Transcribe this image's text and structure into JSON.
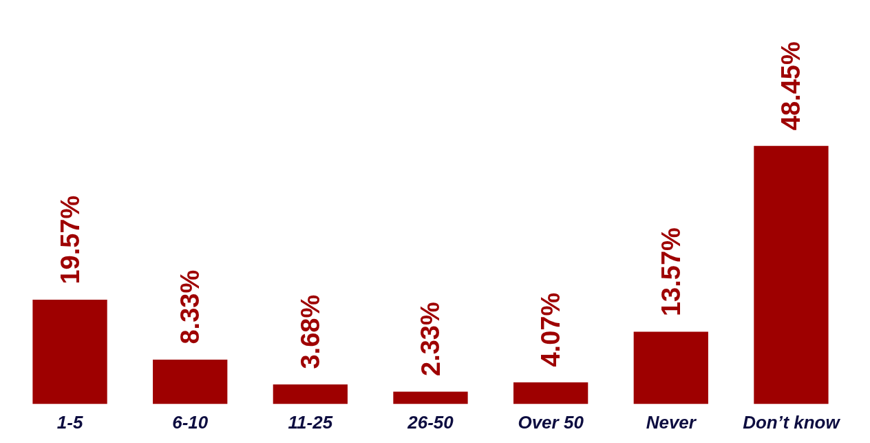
{
  "chart_data": {
    "type": "bar",
    "categories": [
      "1-5",
      "6-10",
      "11-25",
      "26-50",
      "Over 50",
      "Never",
      "Don’t know"
    ],
    "values": [
      19.57,
      8.33,
      3.68,
      2.33,
      4.07,
      13.57,
      48.45
    ],
    "color": "#9e0000",
    "data_labels": true,
    "value_labels": [
      "19.57%",
      "8.33%",
      "3.68%",
      "2.33%",
      "4.07%",
      "13.57%",
      "48.45%"
    ]
  }
}
